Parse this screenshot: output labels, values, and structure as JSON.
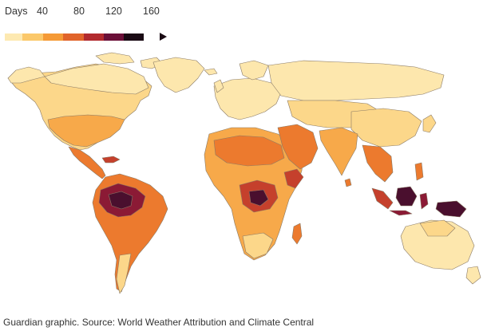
{
  "legend": {
    "title": "Days",
    "ticks": [
      "40",
      "80",
      "120",
      "160"
    ],
    "colors": [
      "#fde9b1",
      "#fbc86a",
      "#f59a36",
      "#e1642a",
      "#b22a2e",
      "#6b1038",
      "#1a0a14"
    ]
  },
  "map": {
    "type": "choropleth world map",
    "colors": {
      "light": "#fde7ad",
      "pale": "#fcd78a",
      "mid": "#f7a94a",
      "orange": "#ec7a2e",
      "red": "#c5402c",
      "darkred": "#8b1a35",
      "deep": "#4a0f2e",
      "border": "#8a7a66"
    }
  },
  "footer": {
    "source": "Guardian graphic. Source: World Weather Attribution and Climate Central"
  }
}
